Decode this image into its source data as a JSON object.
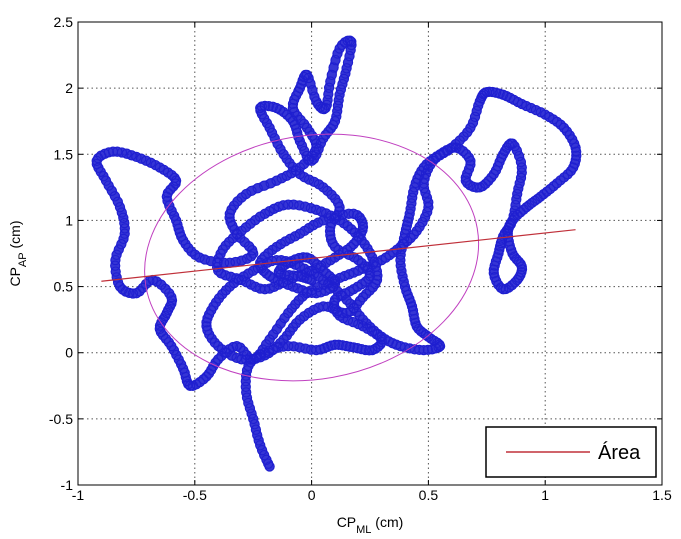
{
  "chart_data": {
    "type": "scatter",
    "title": "",
    "xlabel": {
      "main": "CP",
      "sub": "ML",
      "unit": " (cm)"
    },
    "ylabel": {
      "main": "CP",
      "sub": "AP",
      "unit": " (cm)"
    },
    "xlim": [
      -1,
      1.5
    ],
    "ylim": [
      -1,
      2.5
    ],
    "xticks": [
      -1,
      -0.5,
      0,
      0.5,
      1,
      1.5
    ],
    "yticks": [
      -1,
      -0.5,
      0,
      0.5,
      1,
      1.5,
      2,
      2.5
    ],
    "xtick_labels": [
      "-1",
      "-0.5",
      "0",
      "0.5",
      "1",
      "1.5"
    ],
    "ytick_labels": [
      "-1",
      "-0.5",
      "0",
      "0.5",
      "1",
      "1.5",
      "2",
      "2.5"
    ],
    "grid": true,
    "legend": {
      "position": "bottom-right",
      "entries": [
        "Área"
      ]
    },
    "colors": {
      "trajectory": "#1f1fd0",
      "ellipse": "#c040c0",
      "axis_line": "#c0303a",
      "grid": "#555555"
    },
    "trajectory": [
      [
        -0.18,
        -0.86
      ],
      [
        -0.22,
        -0.7
      ],
      [
        -0.25,
        -0.5
      ],
      [
        -0.28,
        -0.3
      ],
      [
        -0.27,
        -0.1
      ],
      [
        -0.2,
        0.0
      ],
      [
        -0.1,
        0.05
      ],
      [
        0.02,
        0.02
      ],
      [
        0.1,
        0.06
      ],
      [
        0.18,
        0.04
      ],
      [
        0.26,
        0.02
      ],
      [
        0.3,
        0.1
      ],
      [
        0.22,
        0.2
      ],
      [
        0.12,
        0.28
      ],
      [
        0.1,
        0.4
      ],
      [
        0.18,
        0.48
      ],
      [
        0.25,
        0.58
      ],
      [
        0.2,
        0.7
      ],
      [
        0.1,
        0.8
      ],
      [
        0.08,
        0.95
      ],
      [
        0.12,
        1.1
      ],
      [
        0.05,
        1.25
      ],
      [
        -0.05,
        1.35
      ],
      [
        -0.12,
        1.5
      ],
      [
        -0.18,
        1.7
      ],
      [
        -0.22,
        1.85
      ],
      [
        -0.15,
        1.85
      ],
      [
        -0.08,
        1.75
      ],
      [
        -0.05,
        1.6
      ],
      [
        0.0,
        1.45
      ],
      [
        0.05,
        1.62
      ],
      [
        0.1,
        1.75
      ],
      [
        0.12,
        1.95
      ],
      [
        0.15,
        2.15
      ],
      [
        0.17,
        2.35
      ],
      [
        0.12,
        2.3
      ],
      [
        0.08,
        2.05
      ],
      [
        0.06,
        1.85
      ],
      [
        0.02,
        1.9
      ],
      [
        -0.02,
        2.1
      ],
      [
        -0.05,
        2.0
      ],
      [
        -0.08,
        1.85
      ],
      [
        -0.02,
        1.7
      ],
      [
        0.02,
        1.55
      ],
      [
        -0.05,
        1.4
      ],
      [
        -0.15,
        1.3
      ],
      [
        -0.28,
        1.2
      ],
      [
        -0.35,
        1.05
      ],
      [
        -0.32,
        0.9
      ],
      [
        -0.25,
        0.75
      ],
      [
        -0.35,
        0.68
      ],
      [
        -0.48,
        0.72
      ],
      [
        -0.55,
        0.85
      ],
      [
        -0.58,
        1.0
      ],
      [
        -0.62,
        1.18
      ],
      [
        -0.58,
        1.3
      ],
      [
        -0.65,
        1.4
      ],
      [
        -0.75,
        1.48
      ],
      [
        -0.85,
        1.52
      ],
      [
        -0.92,
        1.45
      ],
      [
        -0.88,
        1.3
      ],
      [
        -0.82,
        1.1
      ],
      [
        -0.8,
        0.9
      ],
      [
        -0.84,
        0.7
      ],
      [
        -0.82,
        0.5
      ],
      [
        -0.75,
        0.45
      ],
      [
        -0.68,
        0.55
      ],
      [
        -0.6,
        0.42
      ],
      [
        -0.62,
        0.3
      ],
      [
        -0.65,
        0.18
      ],
      [
        -0.6,
        0.05
      ],
      [
        -0.55,
        -0.12
      ],
      [
        -0.52,
        -0.25
      ],
      [
        -0.45,
        -0.18
      ],
      [
        -0.4,
        -0.05
      ],
      [
        -0.32,
        0.05
      ],
      [
        -0.25,
        -0.05
      ],
      [
        -0.18,
        0.1
      ],
      [
        -0.1,
        0.3
      ],
      [
        -0.02,
        0.45
      ],
      [
        0.1,
        0.55
      ],
      [
        0.2,
        0.62
      ],
      [
        0.3,
        0.7
      ],
      [
        0.38,
        0.8
      ],
      [
        0.45,
        0.92
      ],
      [
        0.5,
        1.1
      ],
      [
        0.48,
        1.28
      ],
      [
        0.52,
        1.45
      ],
      [
        0.6,
        1.55
      ],
      [
        0.68,
        1.7
      ],
      [
        0.72,
        1.9
      ],
      [
        0.75,
        1.97
      ],
      [
        0.82,
        1.95
      ],
      [
        0.9,
        1.88
      ],
      [
        1.0,
        1.8
      ],
      [
        1.08,
        1.7
      ],
      [
        1.13,
        1.55
      ],
      [
        1.12,
        1.4
      ],
      [
        1.05,
        1.28
      ],
      [
        0.98,
        1.18
      ],
      [
        0.92,
        1.1
      ],
      [
        0.86,
        1.0
      ],
      [
        0.84,
        0.9
      ],
      [
        0.86,
        0.75
      ],
      [
        0.9,
        0.65
      ],
      [
        0.88,
        0.55
      ],
      [
        0.82,
        0.48
      ],
      [
        0.78,
        0.6
      ],
      [
        0.8,
        0.75
      ],
      [
        0.82,
        0.88
      ],
      [
        0.86,
        1.0
      ],
      [
        0.88,
        1.2
      ],
      [
        0.9,
        1.4
      ],
      [
        0.86,
        1.58
      ],
      [
        0.82,
        1.5
      ],
      [
        0.78,
        1.35
      ],
      [
        0.72,
        1.25
      ],
      [
        0.66,
        1.3
      ],
      [
        0.68,
        1.45
      ],
      [
        0.62,
        1.55
      ],
      [
        0.55,
        1.5
      ],
      [
        0.48,
        1.4
      ],
      [
        0.44,
        1.25
      ],
      [
        0.42,
        1.05
      ],
      [
        0.4,
        0.9
      ],
      [
        0.38,
        0.7
      ],
      [
        0.4,
        0.5
      ],
      [
        0.43,
        0.35
      ],
      [
        0.45,
        0.2
      ],
      [
        0.5,
        0.12
      ],
      [
        0.55,
        0.05
      ],
      [
        0.48,
        0.02
      ],
      [
        0.38,
        0.05
      ],
      [
        0.3,
        0.12
      ],
      [
        0.22,
        0.25
      ],
      [
        0.15,
        0.4
      ],
      [
        0.05,
        0.55
      ],
      [
        -0.05,
        0.65
      ],
      [
        -0.15,
        0.7
      ],
      [
        -0.25,
        0.62
      ],
      [
        -0.35,
        0.5
      ],
      [
        -0.42,
        0.35
      ],
      [
        -0.45,
        0.2
      ],
      [
        -0.4,
        0.05
      ],
      [
        -0.3,
        -0.05
      ],
      [
        -0.2,
        -0.02
      ],
      [
        -0.12,
        0.1
      ],
      [
        -0.05,
        0.25
      ],
      [
        0.05,
        0.35
      ],
      [
        0.15,
        0.3
      ],
      [
        0.22,
        0.42
      ],
      [
        0.28,
        0.55
      ],
      [
        0.26,
        0.72
      ],
      [
        0.2,
        0.88
      ],
      [
        0.12,
        1.0
      ],
      [
        0.02,
        1.08
      ],
      [
        -0.1,
        1.12
      ],
      [
        -0.2,
        1.05
      ],
      [
        -0.3,
        0.92
      ],
      [
        -0.38,
        0.78
      ],
      [
        -0.4,
        0.62
      ],
      [
        -0.3,
        0.55
      ],
      [
        -0.2,
        0.48
      ],
      [
        -0.1,
        0.55
      ],
      [
        0.0,
        0.62
      ],
      [
        0.1,
        0.72
      ],
      [
        0.18,
        0.82
      ],
      [
        0.22,
        0.95
      ],
      [
        0.18,
        1.05
      ],
      [
        0.05,
        1.0
      ],
      [
        -0.05,
        0.9
      ],
      [
        -0.15,
        0.8
      ],
      [
        -0.22,
        0.68
      ],
      [
        -0.18,
        0.58
      ],
      [
        -0.08,
        0.5
      ],
      [
        0.02,
        0.45
      ],
      [
        0.1,
        0.52
      ],
      [
        0.05,
        0.62
      ],
      [
        -0.02,
        0.72
      ],
      [
        -0.1,
        0.68
      ],
      [
        -0.14,
        0.6
      ],
      [
        -0.06,
        0.58
      ],
      [
        0.0,
        0.55
      ]
    ],
    "ellipse": {
      "center": [
        0.0,
        0.72
      ],
      "rx": 0.72,
      "ry": 0.92,
      "rotation_deg": 10
    },
    "principal_axis": [
      [
        -0.9,
        0.54
      ],
      [
        1.13,
        0.93
      ]
    ]
  }
}
